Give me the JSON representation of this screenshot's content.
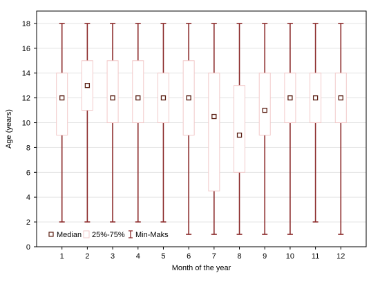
{
  "chart_data": {
    "type": "box",
    "xlabel": "Month of the year",
    "ylabel": "Age (years)",
    "categories": [
      "1",
      "2",
      "3",
      "4",
      "5",
      "6",
      "7",
      "8",
      "9",
      "10",
      "11",
      "12"
    ],
    "ylim": [
      0,
      19
    ],
    "yticks": [
      0,
      2,
      4,
      6,
      8,
      10,
      12,
      14,
      16,
      18
    ],
    "grid": true,
    "legend_position": "bottom-center",
    "legend": {
      "median": "Median",
      "iqr": "25%-75%",
      "range": "Min-Maks"
    },
    "colors": {
      "whisker": "#8b2a2a",
      "box": "#f2c9c9",
      "median_marker": "#5a1e12",
      "grid": "#e3e3e3",
      "axis": "#000000"
    },
    "series": [
      {
        "values": [
          {
            "category": "1",
            "min": 2,
            "q1": 9,
            "median": 12,
            "q3": 14,
            "max": 18
          },
          {
            "category": "2",
            "min": 2,
            "q1": 11,
            "median": 13,
            "q3": 15,
            "max": 18
          },
          {
            "category": "3",
            "min": 2,
            "q1": 10,
            "median": 12,
            "q3": 15,
            "max": 18
          },
          {
            "category": "4",
            "min": 2,
            "q1": 10,
            "median": 12,
            "q3": 15,
            "max": 18
          },
          {
            "category": "5",
            "min": 2,
            "q1": 10,
            "median": 12,
            "q3": 14,
            "max": 18
          },
          {
            "category": "6",
            "min": 1,
            "q1": 9,
            "median": 12,
            "q3": 15,
            "max": 18
          },
          {
            "category": "7",
            "min": 1,
            "q1": 4.5,
            "median": 10.5,
            "q3": 14,
            "max": 18
          },
          {
            "category": "8",
            "min": 1,
            "q1": 6,
            "median": 9,
            "q3": 13,
            "max": 18
          },
          {
            "category": "9",
            "min": 1,
            "q1": 9,
            "median": 11,
            "q3": 14,
            "max": 18
          },
          {
            "category": "10",
            "min": 1,
            "q1": 10,
            "median": 12,
            "q3": 14,
            "max": 18
          },
          {
            "category": "11",
            "min": 2,
            "q1": 10,
            "median": 12,
            "q3": 14,
            "max": 18
          },
          {
            "category": "12",
            "min": 1,
            "q1": 10,
            "median": 12,
            "q3": 14,
            "max": 18
          }
        ]
      }
    ]
  }
}
